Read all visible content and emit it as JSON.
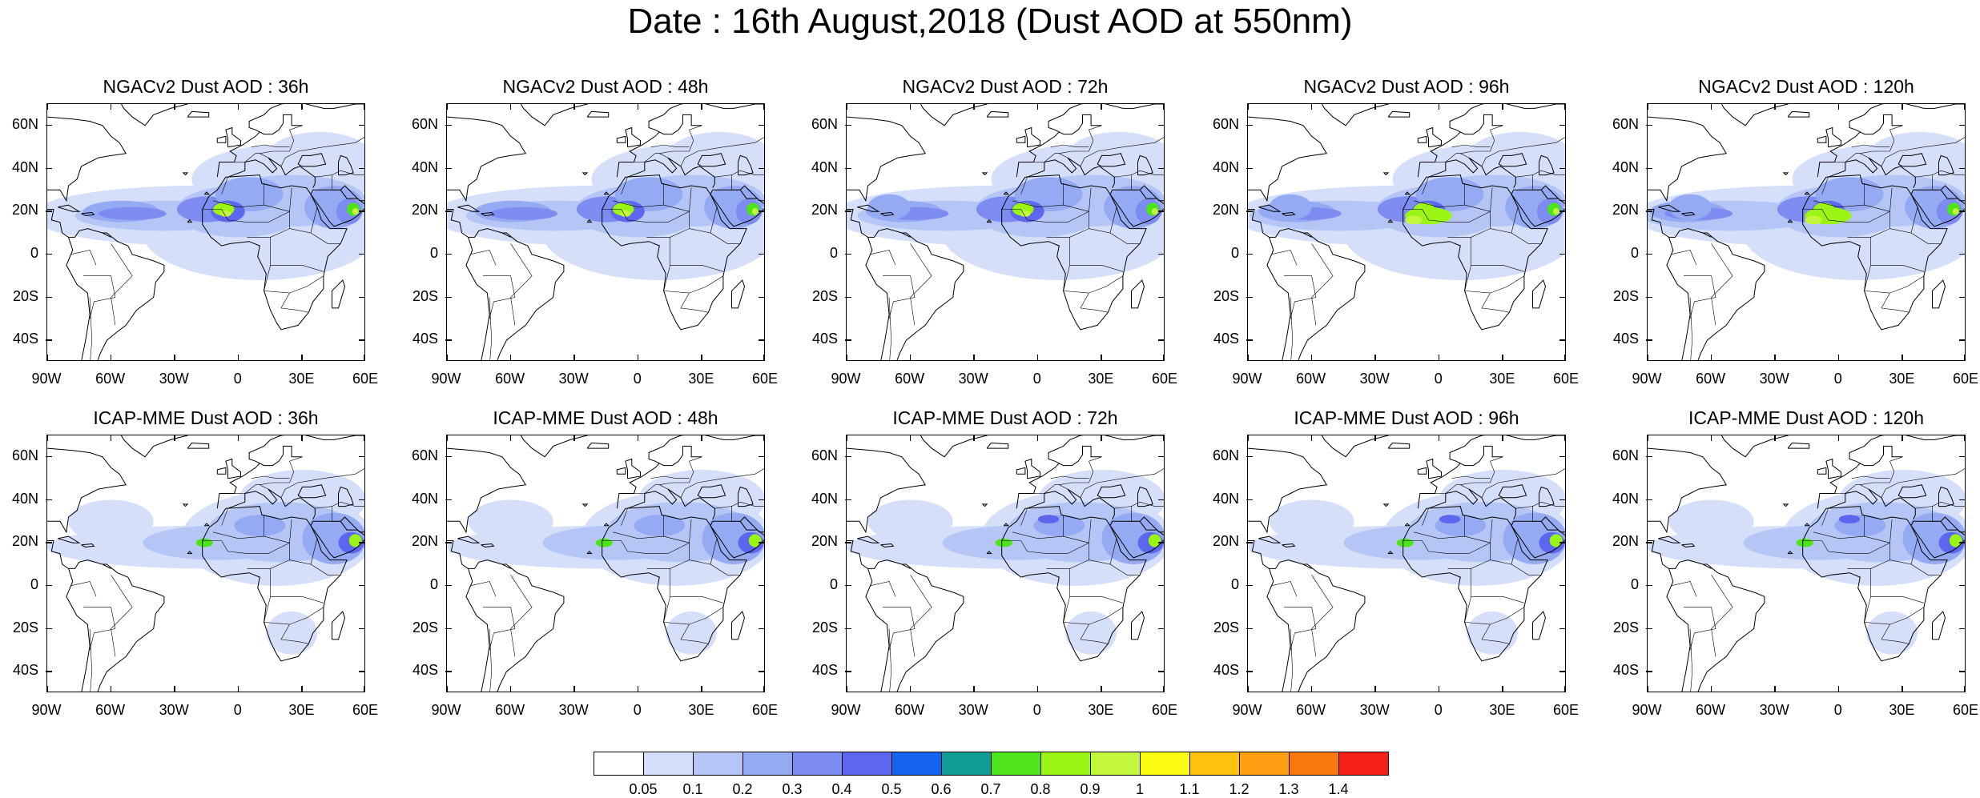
{
  "title": "Date : 16th August,2018 (Dust AOD at 550nm)",
  "panels": [
    {
      "title": "NGACv2 Dust AOD : 36h",
      "row": 0,
      "col": 0
    },
    {
      "title": "NGACv2 Dust AOD : 48h",
      "row": 0,
      "col": 1
    },
    {
      "title": "NGACv2 Dust AOD : 72h",
      "row": 0,
      "col": 2
    },
    {
      "title": "NGACv2 Dust AOD : 96h",
      "row": 0,
      "col": 3
    },
    {
      "title": "NGACv2 Dust AOD : 120h",
      "row": 0,
      "col": 4
    },
    {
      "title": "ICAP-MME Dust AOD : 36h",
      "row": 1,
      "col": 0
    },
    {
      "title": "ICAP-MME Dust AOD : 48h",
      "row": 1,
      "col": 1
    },
    {
      "title": "ICAP-MME Dust AOD : 72h",
      "row": 1,
      "col": 2
    },
    {
      "title": "ICAP-MME Dust AOD : 96h",
      "row": 1,
      "col": 3
    },
    {
      "title": "ICAP-MME Dust AOD : 120h",
      "row": 1,
      "col": 4
    }
  ],
  "lat_ticks": [
    "60N",
    "40N",
    "20N",
    "0",
    "20S",
    "40S"
  ],
  "lon_ticks": [
    "90W",
    "60W",
    "30W",
    "0",
    "30E",
    "60E"
  ],
  "colorbar": {
    "labels": [
      "0.05",
      "0.1",
      "0.2",
      "0.3",
      "0.4",
      "0.5",
      "0.6",
      "0.7",
      "0.8",
      "0.9",
      "1",
      "1.1",
      "1.2",
      "1.3",
      "1.4"
    ],
    "colors": [
      "#ffffff",
      "#d6dffa",
      "#b5c6f6",
      "#94abf3",
      "#7d8cf0",
      "#5c66ee",
      "#1565ee",
      "#119b95",
      "#4ee41a",
      "#9af414",
      "#c4f63e",
      "#fcfc10",
      "#fcc20f",
      "#fc9f13",
      "#f8780c",
      "#f41f17"
    ]
  },
  "legend_note": ""
}
